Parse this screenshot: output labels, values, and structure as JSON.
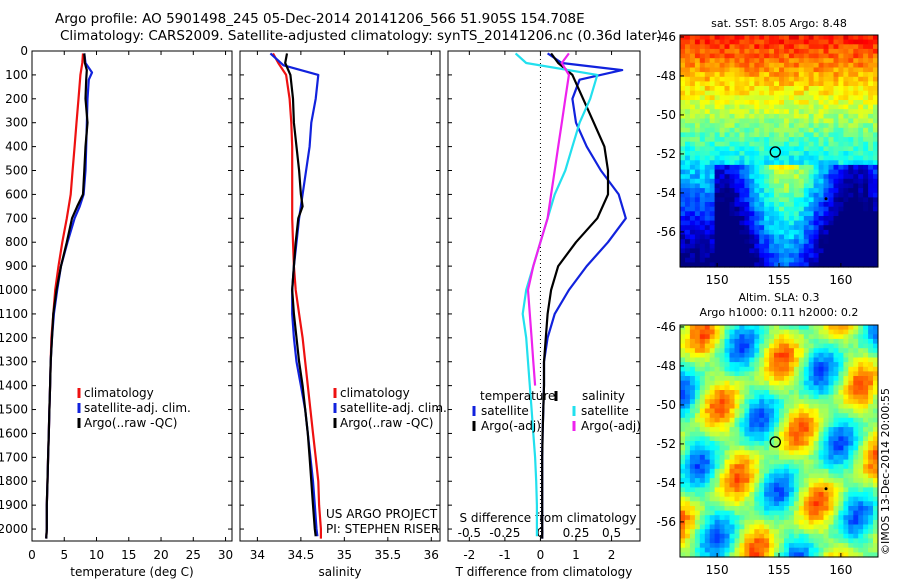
{
  "header": {
    "line1": "Argo profile: AO 5901498_245 05-Dec-2014 20141206_566 51.905S 154.708E",
    "line2": "Climatology: CARS2009. Satellite-adjusted climatology: synTS_20141206.nc (0.36d later)"
  },
  "colors": {
    "climatology": "#ee1111",
    "satellite": "#1122dd",
    "argo": "#000000",
    "salinity_sat": "#22e0ee",
    "salinity_argo": "#ee22ee"
  },
  "project": {
    "line1": "US ARGO PROJECT",
    "line2": "PI: STEPHEN RISER"
  },
  "chart_data": [
    {
      "type": "line",
      "id": "temperature",
      "xlabel": "temperature (deg C)",
      "xlim": [
        0,
        31
      ],
      "xticks": [
        0,
        5,
        10,
        15,
        20,
        25,
        30
      ],
      "ylim": [
        2050,
        0
      ],
      "yticks": [
        0,
        100,
        200,
        300,
        400,
        500,
        600,
        700,
        800,
        900,
        1000,
        1100,
        1200,
        1300,
        1400,
        1500,
        1600,
        1700,
        1800,
        1900,
        2000
      ],
      "legend": [
        "climatology",
        "satellite-adj. clim.",
        "Argo(..raw -QC)"
      ],
      "legend_position": "lower-right",
      "series": [
        {
          "name": "climatology",
          "color": "red",
          "points": [
            [
              7.9,
              10
            ],
            [
              7.8,
              50
            ],
            [
              7.5,
              100
            ],
            [
              7.2,
              200
            ],
            [
              6.9,
              300
            ],
            [
              6.6,
              400
            ],
            [
              6.3,
              500
            ],
            [
              6.0,
              600
            ],
            [
              5.4,
              700
            ],
            [
              4.7,
              800
            ],
            [
              4.1,
              900
            ],
            [
              3.6,
              1000
            ],
            [
              3.3,
              1100
            ],
            [
              3.0,
              1200
            ],
            [
              2.9,
              1300
            ],
            [
              2.8,
              1400
            ],
            [
              2.7,
              1500
            ],
            [
              2.6,
              1600
            ],
            [
              2.5,
              1700
            ],
            [
              2.4,
              1800
            ],
            [
              2.3,
              1900
            ],
            [
              2.3,
              2000
            ],
            [
              2.2,
              2040
            ]
          ]
        },
        {
          "name": "satellite-adj. clim.",
          "color": "blue",
          "points": [
            [
              8.1,
              10
            ],
            [
              8.3,
              50
            ],
            [
              9.3,
              90
            ],
            [
              8.8,
              120
            ],
            [
              8.6,
              200
            ],
            [
              8.4,
              400
            ],
            [
              8.3,
              500
            ],
            [
              8.0,
              600
            ],
            [
              7.4,
              650
            ],
            [
              6.6,
              700
            ],
            [
              5.5,
              800
            ],
            [
              4.5,
              900
            ],
            [
              3.9,
              1000
            ],
            [
              3.4,
              1100
            ],
            [
              3.1,
              1200
            ],
            [
              2.9,
              1300
            ],
            [
              2.8,
              1400
            ],
            [
              2.7,
              1500
            ],
            [
              2.6,
              1600
            ],
            [
              2.5,
              1700
            ],
            [
              2.4,
              1800
            ],
            [
              2.3,
              1900
            ],
            [
              2.3,
              2000
            ],
            [
              2.2,
              2040
            ]
          ]
        },
        {
          "name": "Argo(..raw -QC)",
          "color": "black",
          "points": [
            [
              8.1,
              10
            ],
            [
              8.2,
              50
            ],
            [
              8.5,
              80
            ],
            [
              8.4,
              120
            ],
            [
              8.3,
              200
            ],
            [
              8.6,
              300
            ],
            [
              8.3,
              400
            ],
            [
              8.1,
              500
            ],
            [
              7.9,
              600
            ],
            [
              7.0,
              650
            ],
            [
              6.2,
              700
            ],
            [
              5.4,
              800
            ],
            [
              4.5,
              900
            ],
            [
              3.8,
              1000
            ],
            [
              3.3,
              1100
            ],
            [
              3.1,
              1200
            ],
            [
              2.9,
              1300
            ],
            [
              2.8,
              1400
            ],
            [
              2.7,
              1500
            ],
            [
              2.6,
              1600
            ],
            [
              2.5,
              1700
            ],
            [
              2.4,
              1800
            ],
            [
              2.3,
              1900
            ],
            [
              2.3,
              2000
            ],
            [
              2.2,
              2040
            ]
          ]
        }
      ]
    },
    {
      "type": "line",
      "id": "salinity",
      "xlabel": "salinity",
      "xlim": [
        33.8,
        36.1
      ],
      "xticks": [
        34,
        34.5,
        35,
        35.5,
        36
      ],
      "ylim": [
        2050,
        0
      ],
      "legend": [
        "climatology",
        "satellite-adj. clim.",
        "Argo(..raw -QC)"
      ],
      "legend_position": "lower-right",
      "series": [
        {
          "name": "climatology",
          "color": "red",
          "points": [
            [
              34.18,
              10
            ],
            [
              34.24,
              50
            ],
            [
              34.33,
              100
            ],
            [
              34.37,
              200
            ],
            [
              34.39,
              300
            ],
            [
              34.4,
              400
            ],
            [
              34.4,
              500
            ],
            [
              34.4,
              600
            ],
            [
              34.4,
              700
            ],
            [
              34.41,
              800
            ],
            [
              34.42,
              900
            ],
            [
              34.44,
              1000
            ],
            [
              34.48,
              1100
            ],
            [
              34.52,
              1200
            ],
            [
              34.55,
              1300
            ],
            [
              34.58,
              1400
            ],
            [
              34.61,
              1500
            ],
            [
              34.64,
              1600
            ],
            [
              34.67,
              1700
            ],
            [
              34.7,
              1800
            ],
            [
              34.71,
              1900
            ],
            [
              34.73,
              2000
            ],
            [
              34.73,
              2040
            ]
          ]
        },
        {
          "name": "satellite-adj. clim.",
          "color": "blue",
          "points": [
            [
              34.15,
              10
            ],
            [
              34.3,
              60
            ],
            [
              34.7,
              100
            ],
            [
              34.67,
              200
            ],
            [
              34.62,
              300
            ],
            [
              34.6,
              400
            ],
            [
              34.56,
              500
            ],
            [
              34.52,
              600
            ],
            [
              34.48,
              700
            ],
            [
              34.45,
              800
            ],
            [
              34.42,
              900
            ],
            [
              34.4,
              1000
            ],
            [
              34.4,
              1100
            ],
            [
              34.42,
              1200
            ],
            [
              34.45,
              1300
            ],
            [
              34.5,
              1400
            ],
            [
              34.55,
              1500
            ],
            [
              34.58,
              1600
            ],
            [
              34.61,
              1700
            ],
            [
              34.64,
              1800
            ],
            [
              34.66,
              1900
            ],
            [
              34.68,
              2000
            ],
            [
              34.69,
              2030
            ]
          ]
        },
        {
          "name": "Argo(..raw -QC)",
          "color": "black",
          "points": [
            [
              34.34,
              10
            ],
            [
              34.32,
              50
            ],
            [
              34.38,
              100
            ],
            [
              34.41,
              200
            ],
            [
              34.42,
              300
            ],
            [
              34.45,
              400
            ],
            [
              34.48,
              500
            ],
            [
              34.5,
              600
            ],
            [
              34.52,
              650
            ],
            [
              34.47,
              700
            ],
            [
              34.44,
              800
            ],
            [
              34.42,
              900
            ],
            [
              34.4,
              1000
            ],
            [
              34.42,
              1100
            ],
            [
              34.45,
              1200
            ],
            [
              34.48,
              1300
            ],
            [
              34.52,
              1400
            ],
            [
              34.55,
              1500
            ],
            [
              34.58,
              1600
            ],
            [
              34.6,
              1700
            ],
            [
              34.62,
              1800
            ],
            [
              34.64,
              1900
            ],
            [
              34.66,
              2000
            ],
            [
              34.67,
              2030
            ]
          ]
        }
      ]
    },
    {
      "type": "line",
      "id": "difference",
      "xlabel_top": "S difference from climatology",
      "xlabel": "T difference from climatology",
      "xlim": [
        -2.6,
        2.8
      ],
      "xticks": [
        -2,
        -1,
        0,
        1,
        2
      ],
      "s_ticks": [
        -0.5,
        -0.25,
        0,
        0.25,
        0.5
      ],
      "ylim": [
        2050,
        0
      ],
      "legend_temperature_title": "temperature",
      "legend_salinity_title": "salinity",
      "legend": [
        "satellite",
        "Argo(-adj)",
        "satellite",
        "Argo(-adj)"
      ],
      "legend_position": "lower-middle",
      "series": [
        {
          "name": "temperature satellite",
          "color": "blue",
          "points": [
            [
              0.2,
              10
            ],
            [
              0.6,
              50
            ],
            [
              2.3,
              80
            ],
            [
              1.1,
              120
            ],
            [
              0.9,
              200
            ],
            [
              1.0,
              300
            ],
            [
              1.3,
              400
            ],
            [
              1.7,
              500
            ],
            [
              2.2,
              600
            ],
            [
              2.4,
              700
            ],
            [
              1.9,
              800
            ],
            [
              1.3,
              900
            ],
            [
              0.8,
              1000
            ],
            [
              0.4,
              1100
            ],
            [
              0.2,
              1200
            ],
            [
              0.1,
              1300
            ],
            [
              0.1,
              1400
            ],
            [
              0.08,
              1500
            ],
            [
              0.06,
              1600
            ],
            [
              0.05,
              1700
            ],
            [
              0.05,
              1800
            ],
            [
              0.05,
              1900
            ],
            [
              0.05,
              2000
            ],
            [
              0.05,
              2040
            ]
          ]
        },
        {
          "name": "temperature Argo(-adj)",
          "color": "black",
          "points": [
            [
              0.3,
              10
            ],
            [
              0.5,
              50
            ],
            [
              0.9,
              100
            ],
            [
              1.2,
              200
            ],
            [
              1.5,
              300
            ],
            [
              1.8,
              400
            ],
            [
              1.9,
              500
            ],
            [
              1.9,
              600
            ],
            [
              1.6,
              700
            ],
            [
              1.0,
              800
            ],
            [
              0.5,
              900
            ],
            [
              0.3,
              1000
            ],
            [
              0.2,
              1100
            ],
            [
              0.15,
              1200
            ],
            [
              0.1,
              1300
            ],
            [
              0.1,
              1400
            ],
            [
              0.08,
              1500
            ],
            [
              0.06,
              1600
            ],
            [
              0.05,
              1700
            ],
            [
              0.05,
              1800
            ],
            [
              0.05,
              1900
            ],
            [
              0.05,
              2000
            ],
            [
              0.05,
              2040
            ]
          ]
        },
        {
          "name": "salinity satellite",
          "color": "cyan",
          "points": [
            [
              -0.7,
              10
            ],
            [
              -0.4,
              50
            ],
            [
              1.6,
              100
            ],
            [
              1.4,
              200
            ],
            [
              1.1,
              300
            ],
            [
              0.9,
              400
            ],
            [
              0.7,
              500
            ],
            [
              0.4,
              600
            ],
            [
              0.2,
              700
            ],
            [
              0.0,
              800
            ],
            [
              -0.2,
              900
            ],
            [
              -0.4,
              1000
            ],
            [
              -0.5,
              1100
            ],
            [
              -0.4,
              1200
            ],
            [
              -0.35,
              1300
            ],
            [
              -0.3,
              1400
            ],
            [
              -0.25,
              1500
            ],
            [
              -0.2,
              1600
            ],
            [
              -0.15,
              1700
            ],
            [
              -0.12,
              1800
            ],
            [
              -0.1,
              1900
            ],
            [
              -0.1,
              2000
            ],
            [
              -0.1,
              2030
            ]
          ]
        },
        {
          "name": "salinity Argo(-adj)",
          "color": "magenta",
          "points": [
            [
              0.8,
              10
            ],
            [
              0.6,
              50
            ],
            [
              0.8,
              100
            ],
            [
              0.7,
              200
            ],
            [
              0.6,
              300
            ],
            [
              0.5,
              400
            ],
            [
              0.4,
              500
            ],
            [
              0.3,
              600
            ],
            [
              0.2,
              700
            ],
            [
              0.0,
              800
            ],
            [
              -0.2,
              900
            ],
            [
              -0.35,
              1000
            ],
            [
              -0.3,
              1100
            ],
            [
              -0.25,
              1200
            ],
            [
              -0.2,
              1300
            ],
            [
              -0.15,
              1400
            ]
          ]
        }
      ]
    },
    {
      "type": "heatmap",
      "id": "sst_map",
      "title": "sat. SST: 8.05 Argo: 8.48",
      "xticks": [
        150,
        155,
        160
      ],
      "yticks": [
        -46,
        -48,
        -50,
        -52,
        -54,
        -56
      ],
      "xlim": [
        147,
        163
      ],
      "ylim": [
        -57.8,
        -45.9
      ],
      "marker": {
        "lon": 154.7,
        "lat": -51.9
      }
    },
    {
      "type": "heatmap",
      "id": "sla_map",
      "title": "Altim. SLA: 0.3",
      "subtitle": "Argo h1000: 0.11 h2000: 0.2",
      "xticks": [
        150,
        155,
        160
      ],
      "yticks": [
        -46,
        -48,
        -50,
        -52,
        -54,
        -56
      ],
      "xlim": [
        147,
        163
      ],
      "ylim": [
        -57.8,
        -45.9
      ],
      "marker": {
        "lon": 154.7,
        "lat": -51.9
      },
      "side_label": "©IMOS 13-Dec-2014 20:00:55"
    }
  ]
}
